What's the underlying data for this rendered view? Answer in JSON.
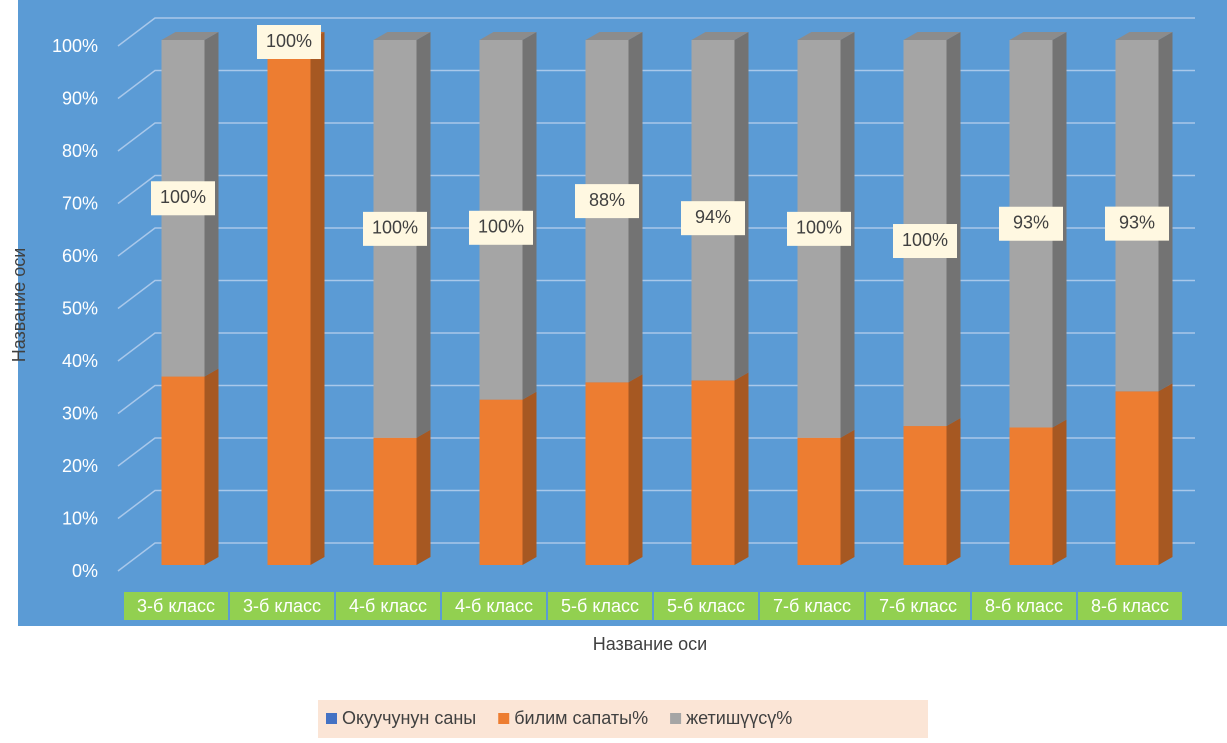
{
  "chart_data": {
    "type": "bar",
    "stacking": "percent",
    "categories": [
      "3-б класс",
      "3-б класс",
      "4-б класс",
      "4-б класс",
      "5-б класс",
      "5-б класс",
      "7-б класс",
      "7-б класс",
      "8-б класс",
      "8-б класс"
    ],
    "series": [
      {
        "name": "Окуучунун саны",
        "color": "#4472c4",
        "values": [
          0,
          0,
          0,
          0,
          0,
          0,
          0,
          0,
          0,
          0
        ]
      },
      {
        "name": "билим сапаты%",
        "color": "#ed7d31",
        "values": [
          56,
          100,
          32,
          46,
          47,
          51,
          32,
          36,
          33,
          46
        ],
        "value_labels": [
          null,
          "100%",
          null,
          null,
          null,
          null,
          null,
          null,
          null,
          null
        ]
      },
      {
        "name": "жетишүүсү%",
        "color": "#a5a5a5",
        "values": [
          100,
          null,
          100,
          100,
          88,
          94,
          100,
          100,
          93,
          93
        ],
        "value_labels": [
          "100%",
          null,
          "100%",
          "100%",
          "88%",
          "94%",
          "100%",
          "100%",
          "93%",
          "93%"
        ]
      }
    ],
    "x_label": "Название оси",
    "y_label": "Название оси",
    "ylim": [
      0,
      100
    ],
    "yticks": [
      {
        "value": 0,
        "label": "0%"
      },
      {
        "value": 10,
        "label": "10%"
      },
      {
        "value": 20,
        "label": "20%"
      },
      {
        "value": 30,
        "label": "30%"
      },
      {
        "value": 40,
        "label": "40%"
      },
      {
        "value": 50,
        "label": "50%"
      },
      {
        "value": 60,
        "label": "60%"
      },
      {
        "value": 70,
        "label": "70%"
      },
      {
        "value": 80,
        "label": "80%"
      },
      {
        "value": 90,
        "label": "90%"
      },
      {
        "value": 100,
        "label": "100%"
      }
    ],
    "grid": true,
    "legend": "bottom"
  }
}
